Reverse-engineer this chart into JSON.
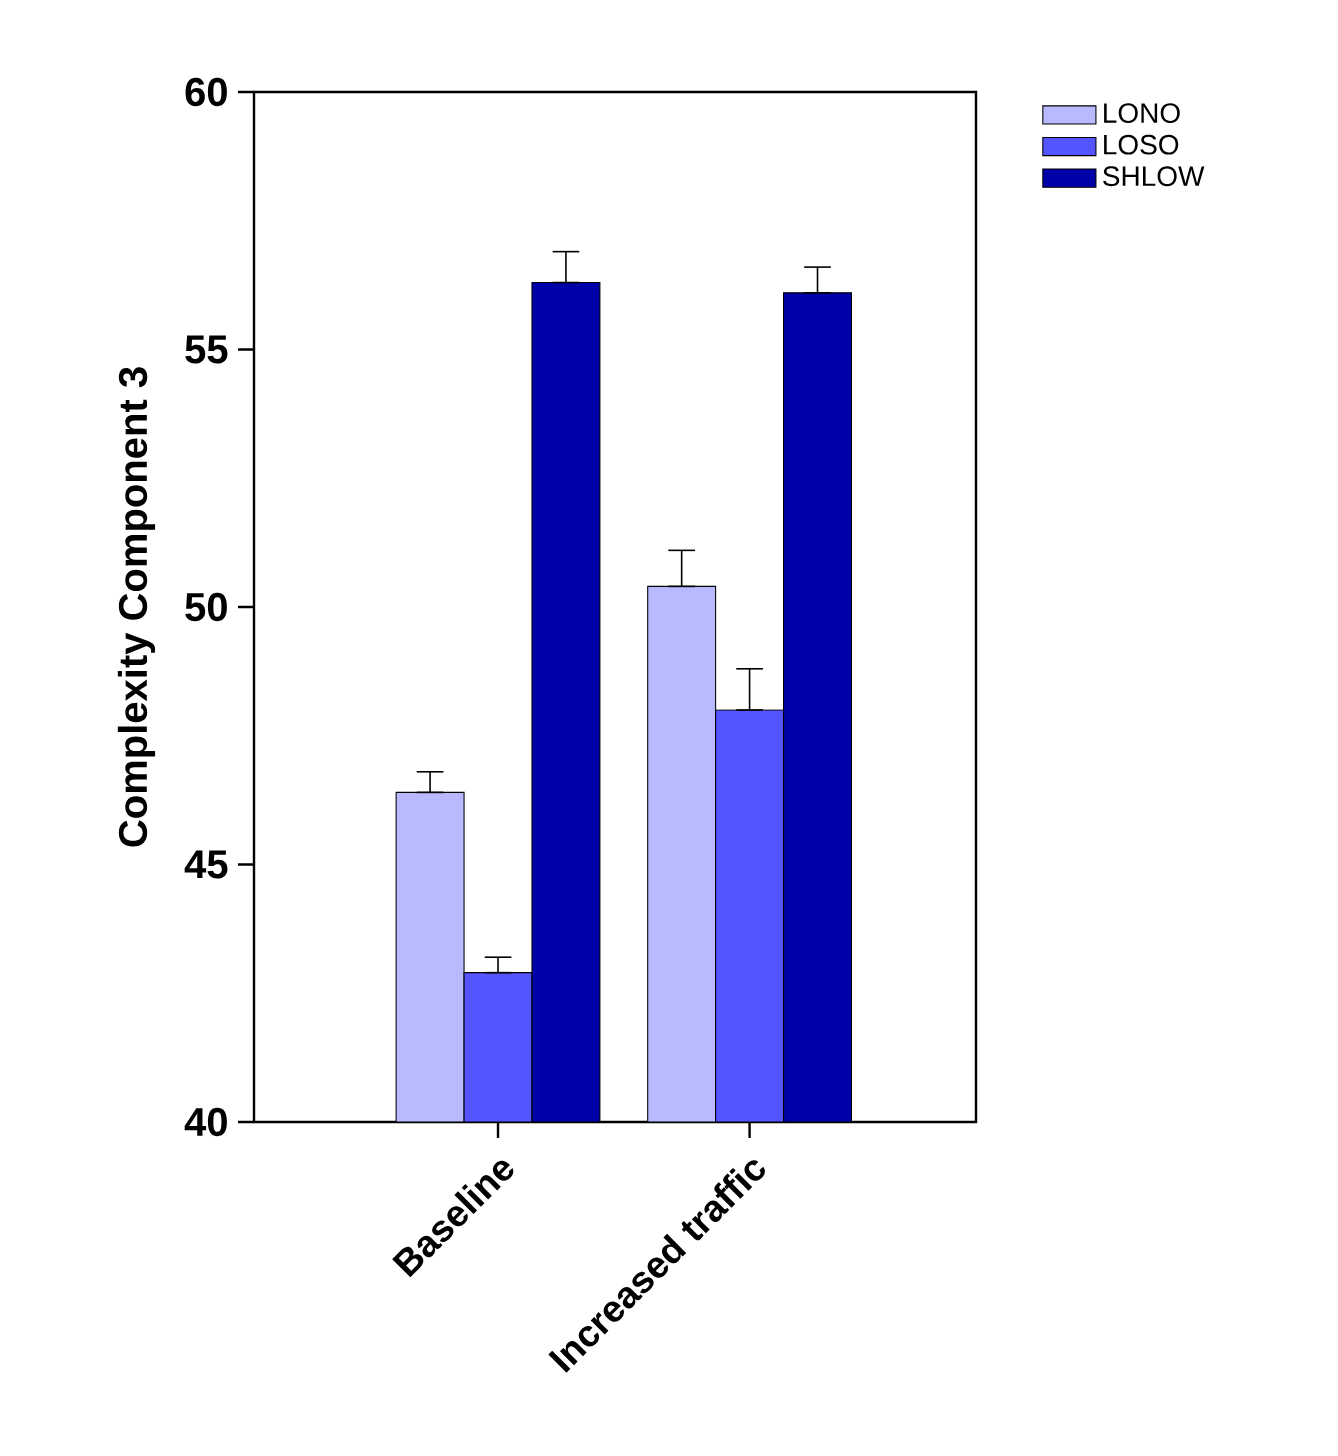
{
  "chart_data": {
    "type": "bar",
    "ylabel": "Complexity Component 3",
    "categories": [
      "Baseline",
      "Increased traffic"
    ],
    "series": [
      {
        "name": "LONO",
        "color": "#b9b9ff",
        "values": [
          46.4,
          50.4
        ],
        "errors": [
          [
            46.4,
            46.8
          ],
          [
            50.4,
            51.1
          ]
        ]
      },
      {
        "name": "LOSO",
        "color": "#5555ff",
        "values": [
          42.9,
          48.0
        ],
        "errors": [
          [
            42.9,
            43.2
          ],
          [
            48.0,
            48.8
          ]
        ]
      },
      {
        "name": "SHLOW",
        "color": "#0000a8",
        "values": [
          56.3,
          56.1
        ],
        "errors": [
          [
            56.3,
            56.9
          ],
          [
            56.1,
            56.6
          ]
        ]
      }
    ],
    "ylim": [
      40,
      60
    ],
    "yticks": [
      40,
      45,
      50,
      55,
      60
    ],
    "grid": false,
    "legend": "top right"
  }
}
